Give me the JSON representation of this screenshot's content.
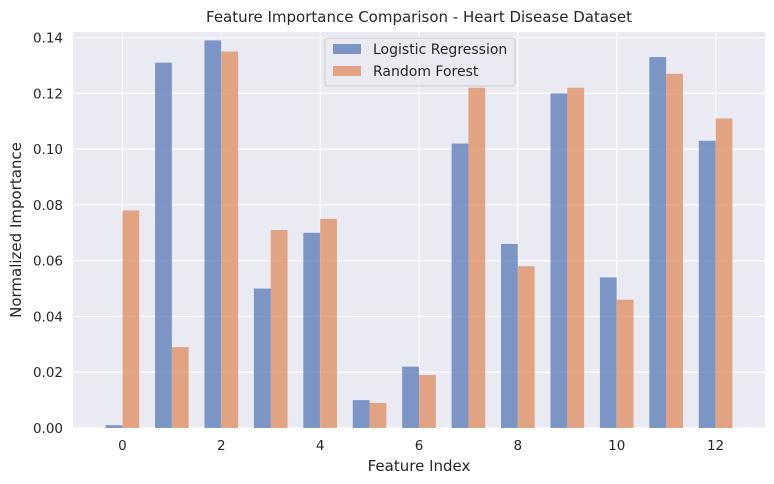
{
  "chart_data": {
    "type": "bar",
    "title": "Feature Importance Comparison - Heart Disease Dataset",
    "xlabel": "Feature Index",
    "ylabel": "Normalized Importance",
    "categories": [
      0,
      1,
      2,
      3,
      4,
      5,
      6,
      7,
      8,
      9,
      10,
      11,
      12
    ],
    "x_ticks": [
      "0",
      "2",
      "4",
      "6",
      "8",
      "10",
      "12"
    ],
    "y_ticks": [
      "0.00",
      "0.02",
      "0.04",
      "0.06",
      "0.08",
      "0.10",
      "0.12",
      "0.14"
    ],
    "ylim": [
      0,
      0.142
    ],
    "xlim": [
      -1,
      13
    ],
    "grid": true,
    "legend_position": "top-center",
    "series": [
      {
        "name": "Logistic Regression",
        "color": "#4c72b0",
        "values": [
          0.001,
          0.131,
          0.139,
          0.05,
          0.07,
          0.01,
          0.022,
          0.102,
          0.066,
          0.12,
          0.054,
          0.133,
          0.103
        ]
      },
      {
        "name": "Random Forest",
        "color": "#dd8452",
        "values": [
          0.078,
          0.029,
          0.135,
          0.071,
          0.075,
          0.009,
          0.019,
          0.122,
          0.058,
          0.122,
          0.046,
          0.127,
          0.111
        ]
      }
    ]
  }
}
